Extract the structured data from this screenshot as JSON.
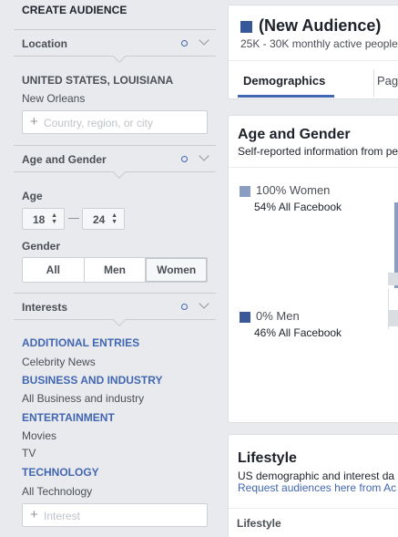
{
  "sidebar": {
    "title": "CREATE AUDIENCE",
    "location": {
      "label": "Location",
      "country": "UNITED STATES, LOUISIANA",
      "city": "New Orleans",
      "input_placeholder": "Country, region, or city"
    },
    "age_gender": {
      "label": "Age and Gender",
      "age_label": "Age",
      "age_min": "18",
      "age_max": "24",
      "gender_label": "Gender",
      "gender_options": [
        "All",
        "Men",
        "Women"
      ],
      "gender_selected": "Women"
    },
    "interests": {
      "label": "Interests",
      "groups": [
        {
          "category": "ADDITIONAL ENTRIES",
          "items": [
            "Celebrity News"
          ]
        },
        {
          "category": "BUSINESS AND INDUSTRY",
          "items": [
            "All Business and industry"
          ]
        },
        {
          "category": "ENTERTAINMENT",
          "items": [
            "Movies",
            "TV"
          ]
        },
        {
          "category": "TECHNOLOGY",
          "items": [
            "All Technology"
          ]
        }
      ],
      "input_placeholder": "Interest"
    }
  },
  "header": {
    "title": "(New Audience)",
    "subtitle": "25K - 30K monthly active people",
    "tabs": [
      "Demographics",
      "Pag"
    ]
  },
  "age_gender_card": {
    "title": "Age and Gender",
    "subtitle": "Self-reported information from pe",
    "women": {
      "label": "100% Women",
      "facebook": "54% All Facebook",
      "color": "#8b9dc3"
    },
    "men": {
      "label": "0% Men",
      "facebook": "46% All Facebook",
      "color": "#3b5998"
    }
  },
  "lifestyle_card": {
    "title": "Lifestyle",
    "subtitle": "US demographic and interest da",
    "link": "Request audiences here from Ac",
    "section_label": "Lifestyle"
  },
  "colors": {
    "accent": "#4267b2",
    "background": "#e9eaed"
  }
}
